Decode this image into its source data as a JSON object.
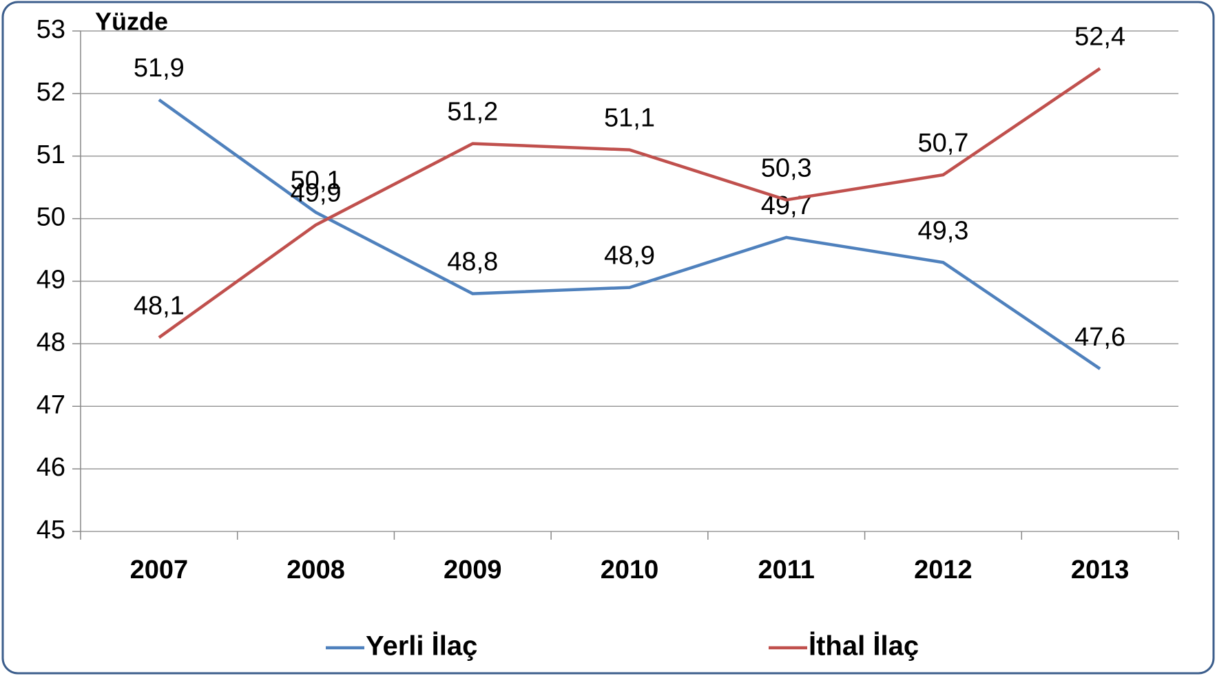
{
  "chart_data": {
    "type": "line",
    "y_label": "Yüzde",
    "categories": [
      "2007",
      "2008",
      "2009",
      "2010",
      "2011",
      "2012",
      "2013"
    ],
    "series": [
      {
        "name": "Yerli İlaç",
        "color": "#4f81bd",
        "values": [
          51.9,
          50.1,
          48.8,
          48.9,
          49.7,
          49.3,
          47.6
        ],
        "value_labels": [
          "51,9",
          "50,1",
          "48,8",
          "48,9",
          "49,7",
          "49,3",
          "47,6"
        ]
      },
      {
        "name": "İthal İlaç",
        "color": "#c0504d",
        "values": [
          48.1,
          49.9,
          51.2,
          51.1,
          50.3,
          50.7,
          52.4
        ],
        "value_labels": [
          "48,1",
          "49,9",
          "51,2",
          "51,1",
          "50,3",
          "50,7",
          "52,4"
        ]
      }
    ],
    "ylim": [
      45,
      53
    ],
    "yticks": [
      45,
      46,
      47,
      48,
      49,
      50,
      51,
      52,
      53
    ],
    "grid": true,
    "legend": "bottom"
  }
}
